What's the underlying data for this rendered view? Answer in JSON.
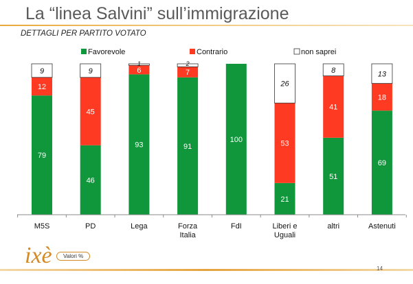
{
  "slide": {
    "title": "La “linea Salvini” sull’immigrazione",
    "subtitle": "DETTAGLI PER PARTITO VOTATO",
    "logo_text": "ixè",
    "badge": "Valori %",
    "page_number": "14"
  },
  "colors": {
    "favorevole": "#10963b",
    "contrario": "#fe3b22",
    "non_saprei": "#ffffff",
    "title_text": "#595959",
    "accent": "#e9a93a"
  },
  "chart_data": {
    "type": "bar",
    "stacked": true,
    "ylim": [
      0,
      100
    ],
    "grid": false,
    "legend_position": "top-center",
    "categories": [
      "M5S",
      "PD",
      "Lega",
      "Forza\nItalia",
      "FdI",
      "Liberi e\nUguali",
      "altri",
      "Astenuti"
    ],
    "series": [
      {
        "name": "Favorevole",
        "values": [
          79,
          46,
          93,
          91,
          100,
          21,
          51,
          69
        ]
      },
      {
        "name": "Contrario",
        "values": [
          12,
          45,
          6,
          7,
          0,
          53,
          41,
          18
        ]
      },
      {
        "name": "non saprei",
        "values": [
          9,
          9,
          1,
          2,
          0,
          26,
          8,
          13
        ]
      }
    ]
  }
}
